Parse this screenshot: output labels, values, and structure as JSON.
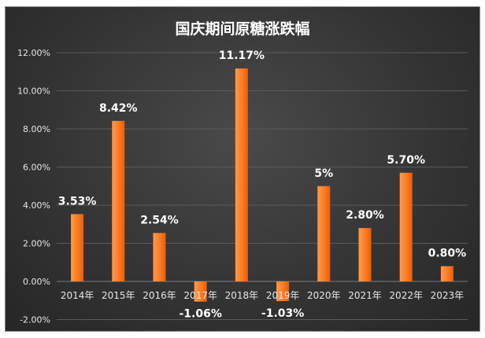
{
  "chart_data": {
    "type": "bar",
    "title": "国庆期间原糖涨跌幅",
    "categories": [
      "2014年",
      "2015年",
      "2016年",
      "2017年",
      "2018年",
      "2019年",
      "2020年",
      "2021年",
      "2022年",
      "2023年"
    ],
    "values": [
      3.53,
      8.42,
      2.54,
      -1.06,
      11.17,
      -1.03,
      5.0,
      2.8,
      5.7,
      0.8
    ],
    "data_labels": [
      "3.53%",
      "8.42%",
      "2.54%",
      "-1.06%",
      "11.17%",
      "-1.03%",
      "5%",
      "2.80%",
      "5.70%",
      "0.80%"
    ],
    "y_ticks": [
      -2,
      0,
      2,
      4,
      6,
      8,
      10,
      12
    ],
    "y_tick_labels": [
      "-2.00%",
      "0.00%",
      "2.00%",
      "4.00%",
      "6.00%",
      "8.00%",
      "10.00%",
      "12.00%"
    ],
    "ylim": [
      -2,
      12
    ],
    "grid": true,
    "legend": false,
    "xlabel": "",
    "ylabel": "",
    "colors": {
      "bar_top": "#ff9a4d",
      "bar_bottom": "#e35f10",
      "background": "#333333",
      "gridline": "#5a5a5a",
      "text": "#ffffff"
    }
  }
}
